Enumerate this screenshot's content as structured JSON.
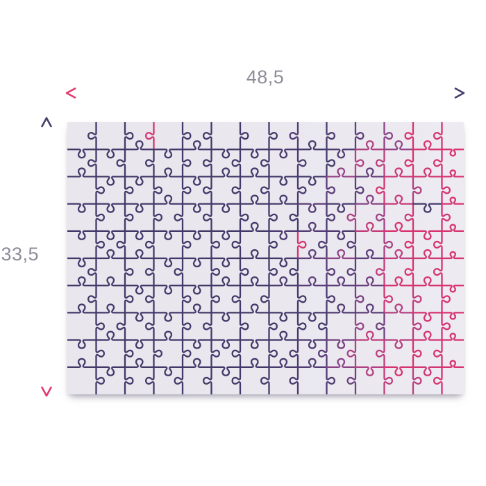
{
  "product_diagram": {
    "width_label": "48,5",
    "height_label": "33,5",
    "label_color": "#8d8d99"
  },
  "puzzle": {
    "rows": 10,
    "cols": 14,
    "surface_color": "#eae7ef",
    "stroke_width": 2.3,
    "edge_color_stops": [
      "#413a69",
      "#5c3d79",
      "#8f4487",
      "#bc3f7e",
      "#d8336f"
    ]
  },
  "arrows": {
    "pink": "#e23a70",
    "navy": "#453e6c"
  }
}
